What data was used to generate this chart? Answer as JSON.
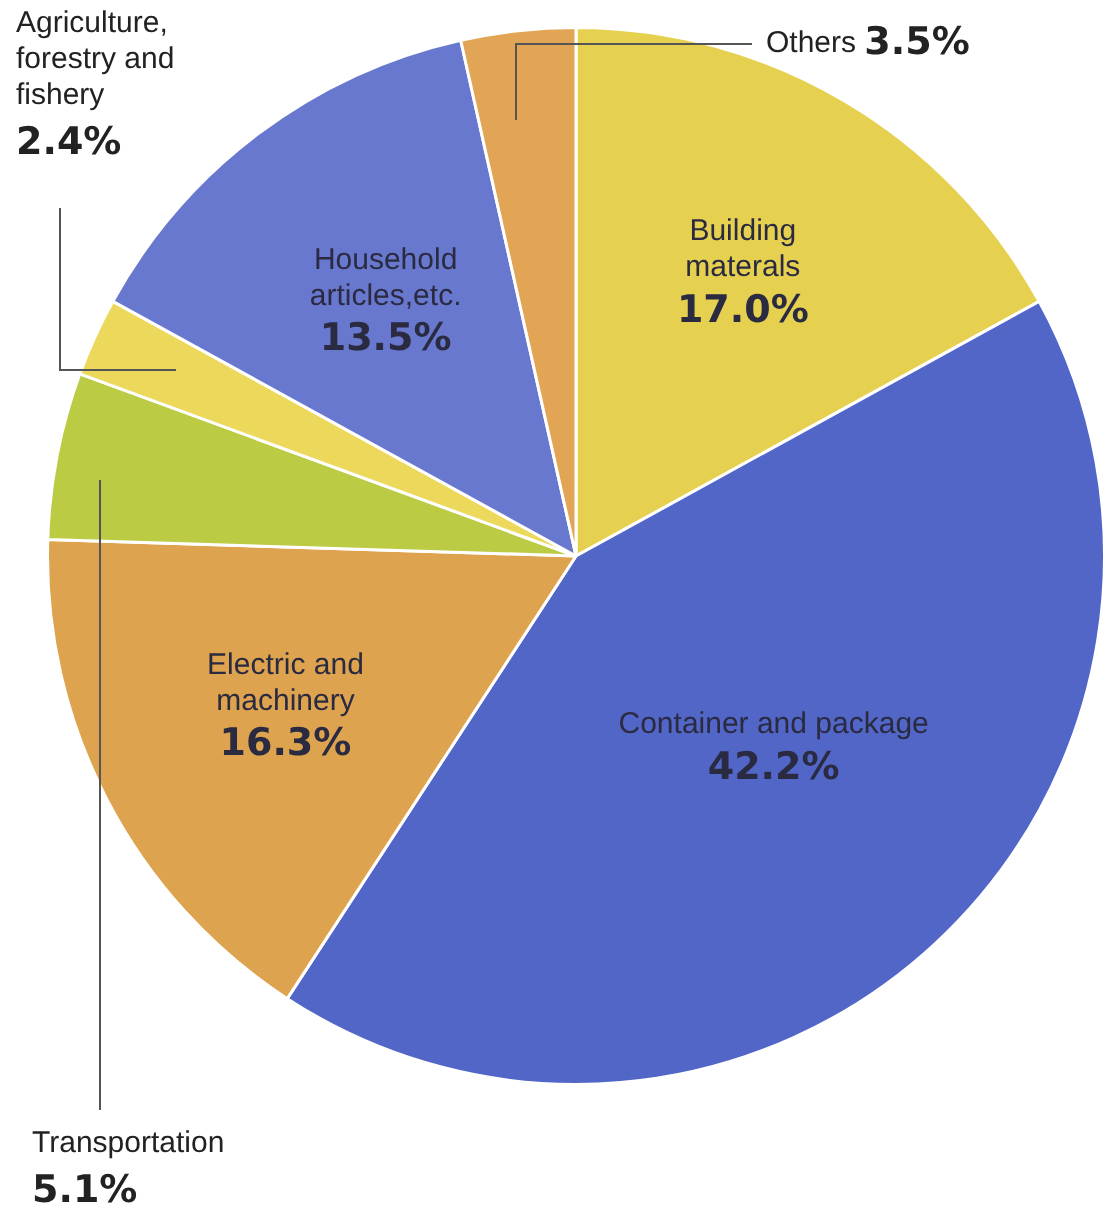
{
  "chart_data": {
    "type": "pie",
    "categories": [
      "Building materals",
      "Container and package",
      "Electric and machinery",
      "Transportation",
      "Agriculture, forestry and fishery",
      "Household articles,etc.",
      "Others"
    ],
    "values": [
      17.0,
      42.2,
      16.3,
      5.1,
      2.4,
      13.5,
      3.5
    ],
    "value_labels": [
      "17.0%",
      "42.2%",
      "16.3%",
      "5.1%",
      "2.4%",
      "13.5%",
      "3.5%"
    ],
    "colors": [
      "#e6d050",
      "#5266c8",
      "#dea34e",
      "#bccb44",
      "#ecd85a",
      "#6878cf",
      "#e2a455"
    ],
    "legend": false
  }
}
